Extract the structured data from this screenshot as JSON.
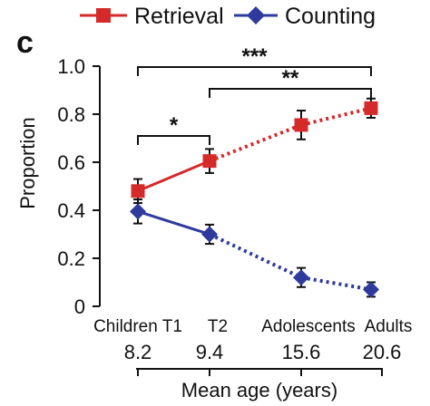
{
  "panel_label": "c",
  "chart_data": {
    "type": "line",
    "ylabel": "Proportion",
    "xlabel": "Mean age (years)",
    "ylim": [
      0,
      1.0
    ],
    "y_ticks": [
      "0",
      "0.2",
      "0.4",
      "0.6",
      "0.8",
      "1.0"
    ],
    "x_values": [
      8.2,
      9.4,
      15.6,
      20.6
    ],
    "group_labels": [
      "Children T1",
      "T2",
      "Adolescents",
      "Adults"
    ],
    "age_labels": [
      "8.2",
      "9.4",
      "15.6",
      "20.6"
    ],
    "legend_position": "top",
    "series": [
      {
        "name": "Retrieval",
        "color": "#d42a2a",
        "marker": "square",
        "values": [
          0.48,
          0.605,
          0.755,
          0.825
        ],
        "errors": [
          0.05,
          0.05,
          0.06,
          0.04
        ]
      },
      {
        "name": "Counting",
        "color": "#2e3a9c",
        "marker": "diamond",
        "values": [
          0.395,
          0.3,
          0.12,
          0.07
        ],
        "errors": [
          0.05,
          0.04,
          0.04,
          0.03
        ]
      }
    ],
    "significance": [
      {
        "label": "*",
        "from": 0,
        "to": 1
      },
      {
        "label": "***",
        "from": 0,
        "to": 3
      },
      {
        "label": "**",
        "from": 1,
        "to": 3
      }
    ]
  }
}
